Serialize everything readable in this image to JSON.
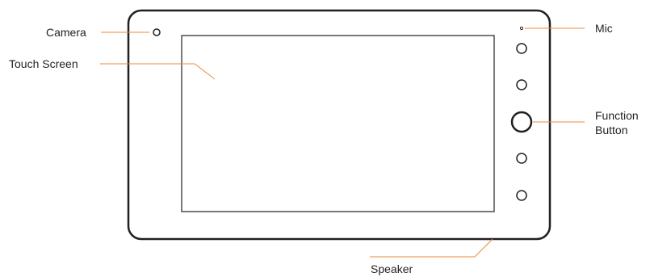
{
  "labels": {
    "camera": "Camera",
    "touch_screen": "Touch Screen",
    "mic": "Mic",
    "function_button_line1": "Function",
    "function_button_line2": "Button",
    "speaker": "Speaker"
  },
  "colors": {
    "outline": "#231f20",
    "leader": "#ec8a3a",
    "text": "#231f20"
  }
}
